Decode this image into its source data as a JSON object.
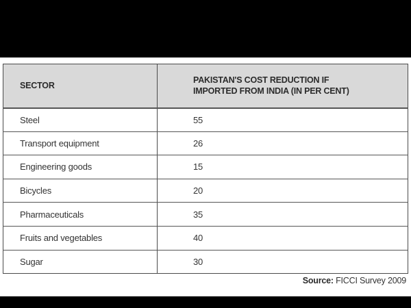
{
  "table": {
    "headers": {
      "sector": "SECTOR",
      "reduction_line1": "PAKISTAN'S COST REDUCTION IF",
      "reduction_line2": "IMPORTED FROM INDIA (IN PER CENT)"
    },
    "rows": [
      {
        "sector": "Steel",
        "value": "55"
      },
      {
        "sector": "Transport equipment",
        "value": "26"
      },
      {
        "sector": "Engineering goods",
        "value": "15"
      },
      {
        "sector": "Bicycles",
        "value": "20"
      },
      {
        "sector": "Pharmaceuticals",
        "value": "35"
      },
      {
        "sector": "Fruits and vegetables",
        "value": "40"
      },
      {
        "sector": "Sugar",
        "value": "30"
      }
    ]
  },
  "source": {
    "label": "Source:",
    "text": " FICCI Survey 2009"
  }
}
